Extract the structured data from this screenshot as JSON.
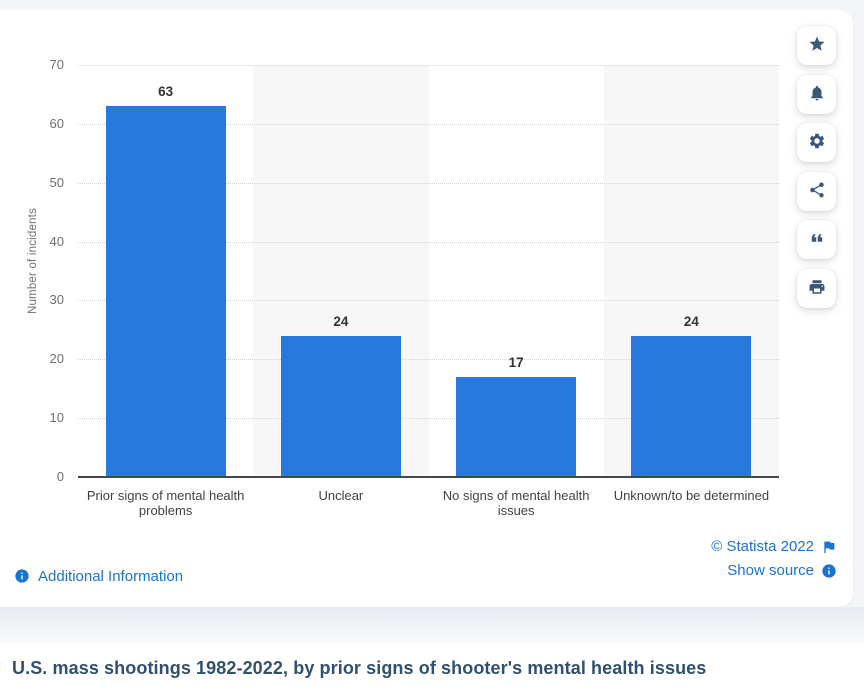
{
  "chart_data": {
    "type": "bar",
    "categories": [
      "Prior signs of mental health problems",
      "Unclear",
      "No signs of mental health issues",
      "Unknown/to be determined"
    ],
    "values": [
      63,
      24,
      17,
      24
    ],
    "title": "",
    "xlabel": "",
    "ylabel": "Number of incidents",
    "ylim": [
      0,
      70
    ],
    "yticks": [
      0,
      10,
      20,
      30,
      40,
      50,
      60,
      70
    ],
    "grid": "horizontal-dotted",
    "legend": "none",
    "bar_color": "#2878de",
    "band_colors": [
      "#ffffff",
      "#f7f7f8"
    ]
  },
  "toolbar": {
    "buttons": [
      {
        "name": "favorite",
        "icon": "star-icon"
      },
      {
        "name": "notifications",
        "icon": "bell-icon"
      },
      {
        "name": "settings",
        "icon": "gear-icon"
      },
      {
        "name": "share",
        "icon": "share-icon"
      },
      {
        "name": "cite",
        "icon": "quote-icon"
      },
      {
        "name": "print",
        "icon": "printer-icon"
      }
    ]
  },
  "footer": {
    "additional_information_label": "Additional Information",
    "copyright_label": "© Statista 2022",
    "show_source_label": "Show source"
  },
  "page": {
    "title": "U.S. mass shootings 1982-2022, by prior signs of shooter's mental health issues"
  },
  "colors": {
    "bar": "#2878de",
    "link": "#1a74d2",
    "title_text": "#31506f",
    "toolbar_icon": "#3b5878",
    "axis_line": "#43474c"
  }
}
